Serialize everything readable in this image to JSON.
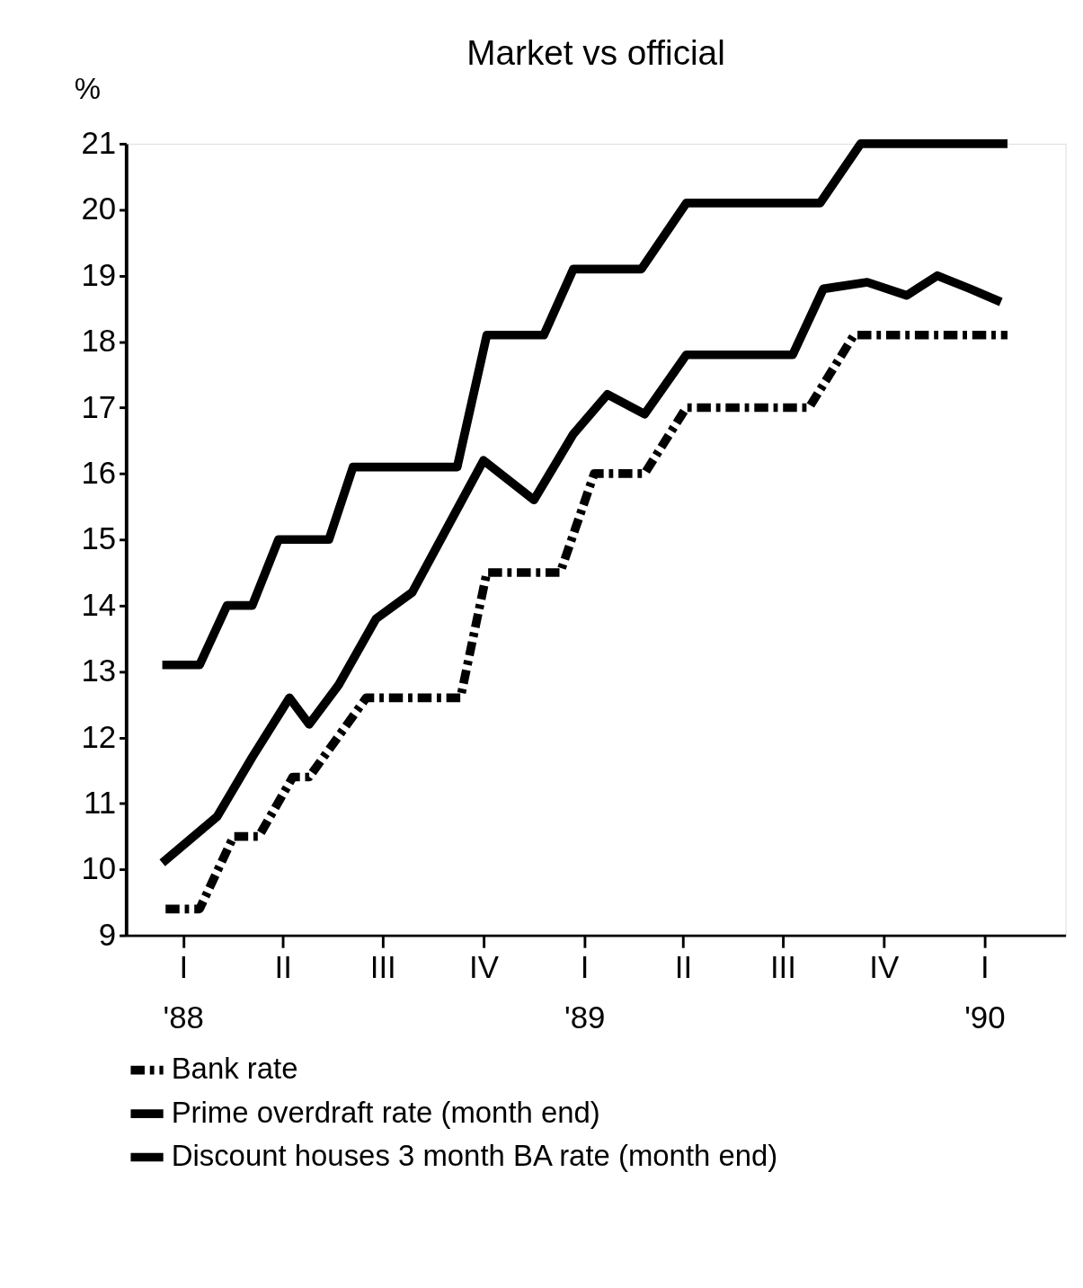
{
  "chart_data": {
    "type": "line",
    "title": "Market vs official",
    "ylabel": "%",
    "xlim": [
      "1987-11-10",
      "1990-03-16"
    ],
    "ylim": [
      9,
      21
    ],
    "yticks": [
      9,
      10,
      11,
      12,
      13,
      14,
      15,
      16,
      17,
      18,
      19,
      20,
      21
    ],
    "xticks": [
      {
        "value": "1988-01",
        "label": "I\n'88"
      },
      {
        "value": "1988-04",
        "label": "II"
      },
      {
        "value": "1988-07",
        "label": "III"
      },
      {
        "value": "1988-10",
        "label": "IV"
      },
      {
        "value": "1989-01",
        "label": "I\n'89"
      },
      {
        "value": "1989-04",
        "label": "II"
      },
      {
        "value": "1989-07",
        "label": "III"
      },
      {
        "value": "1989-10",
        "label": "IV"
      },
      {
        "value": "1990-01",
        "label": "I\n'90"
      }
    ],
    "grid": false,
    "legend": "bottom",
    "marker": "none",
    "series": [
      {
        "name": "Bank rate",
        "color": "#000000",
        "line_style": "dashed",
        "x": [
          "1987-12-16",
          "1988-01-16",
          "1988-02-16",
          "1988-03-10",
          "1988-04-10",
          "1988-04-25",
          "1988-06-16",
          "1988-09-10",
          "1988-10-04",
          "1988-12-10",
          "1989-01-10",
          "1989-02-25",
          "1989-04-04",
          "1989-07-25",
          "1989-09-04",
          "1990-01-22"
        ],
        "values": [
          9.4,
          9.4,
          10.5,
          10.5,
          11.4,
          11.4,
          12.6,
          12.6,
          14.5,
          14.5,
          16.0,
          16.0,
          17.0,
          17.0,
          18.1,
          18.1
        ]
      },
      {
        "name": "Prime overdraft rate (month end)",
        "color": "#000000",
        "line_style": "solid",
        "x": [
          "1987-12-13",
          "1988-01-16",
          "1988-02-10",
          "1988-03-04",
          "1988-03-28",
          "1988-05-13",
          "1988-06-04",
          "1988-09-07",
          "1988-10-04",
          "1988-11-25",
          "1988-12-22",
          "1989-02-22",
          "1989-04-04",
          "1989-08-04",
          "1989-09-10",
          "1990-01-22"
        ],
        "values": [
          13.1,
          13.1,
          14.0,
          14.0,
          15.0,
          15.0,
          16.1,
          16.1,
          18.1,
          18.1,
          19.1,
          19.1,
          20.1,
          20.1,
          21.0,
          21.0
        ]
      },
      {
        "name": "Discount houses 3 month BA rate (month end)",
        "color": "#000000",
        "line_style": "solid",
        "x": [
          "1987-12-13",
          "1988-02-01",
          "1988-03-04",
          "1988-04-07",
          "1988-04-25",
          "1988-05-22",
          "1988-06-25",
          "1988-07-28",
          "1988-10-01",
          "1988-11-16",
          "1988-12-22",
          "1989-01-22",
          "1989-02-25",
          "1989-04-04",
          "1989-07-10",
          "1989-08-07",
          "1989-09-16",
          "1989-10-22",
          "1989-11-19",
          "1989-12-19",
          "1990-01-16"
        ],
        "values": [
          10.1,
          10.8,
          11.7,
          12.6,
          12.2,
          12.8,
          13.8,
          14.2,
          16.2,
          15.6,
          16.6,
          17.2,
          16.9,
          17.8,
          17.8,
          18.8,
          18.9,
          18.7,
          19.0,
          18.8,
          18.6
        ]
      }
    ]
  }
}
